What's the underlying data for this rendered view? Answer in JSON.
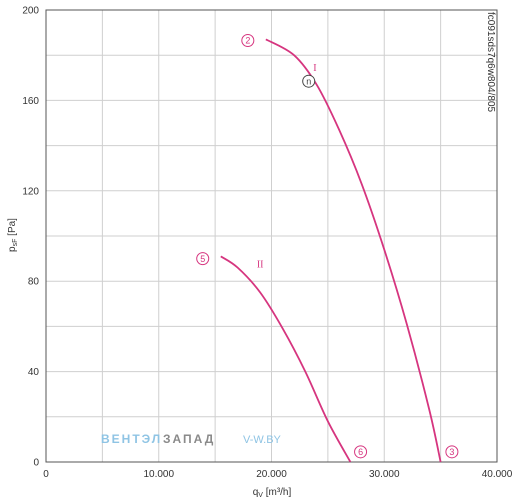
{
  "chart_data": {
    "type": "line",
    "xlabel": "q",
    "xlabel_sub": "V",
    "xlabel_unit": " [m³/h]",
    "ylabel": "p",
    "ylabel_sub": "sF",
    "ylabel_unit": " [Pa]",
    "xlim": [
      0,
      40000
    ],
    "ylim": [
      0,
      200
    ],
    "x_ticks": [
      0,
      10000,
      20000,
      30000,
      40000
    ],
    "x_tick_labels": [
      "0",
      "10.000",
      "20.000",
      "30.000",
      "40.000"
    ],
    "y_ticks": [
      0,
      40,
      80,
      120,
      160,
      200
    ],
    "y_tick_labels": [
      "0",
      "40",
      "80",
      "120",
      "160",
      "200"
    ],
    "x_grid_step": 5000,
    "y_grid_step": 20,
    "grid": true,
    "side_code": "fc091sds7q6w804/805",
    "series": [
      {
        "name": "I",
        "color": "#d6357f",
        "x": [
          19500,
          22000,
          24000,
          26000,
          28000,
          30000,
          32000,
          34000,
          35000
        ],
        "y": [
          187,
          180,
          167,
          147,
          123,
          94,
          61,
          23,
          0
        ]
      },
      {
        "name": "II",
        "color": "#d6357f",
        "x": [
          15500,
          17000,
          19000,
          21000,
          23000,
          25000,
          27000
        ],
        "y": [
          91,
          86,
          75,
          59,
          40,
          18,
          0
        ]
      }
    ],
    "markers": [
      {
        "label": "2",
        "x": 17900,
        "y": 186.5,
        "kind": "point-number"
      },
      {
        "label": "3",
        "x": 36000,
        "y": 4.5,
        "kind": "point-number"
      },
      {
        "label": "5",
        "x": 13900,
        "y": 90,
        "kind": "point-number"
      },
      {
        "label": "6",
        "x": 27900,
        "y": 4.5,
        "kind": "point-number"
      },
      {
        "label": "n",
        "x": 23300,
        "y": 168.5,
        "kind": "operating-point"
      }
    ],
    "curve_labels": [
      {
        "label": "I",
        "x": 23700,
        "y": 173
      },
      {
        "label": "II",
        "x": 18700,
        "y": 86
      }
    ]
  },
  "watermark": {
    "part1": "ВЕНТЭЛ",
    "part2": "ЗАПАД",
    "part3": "V-W.BY"
  }
}
